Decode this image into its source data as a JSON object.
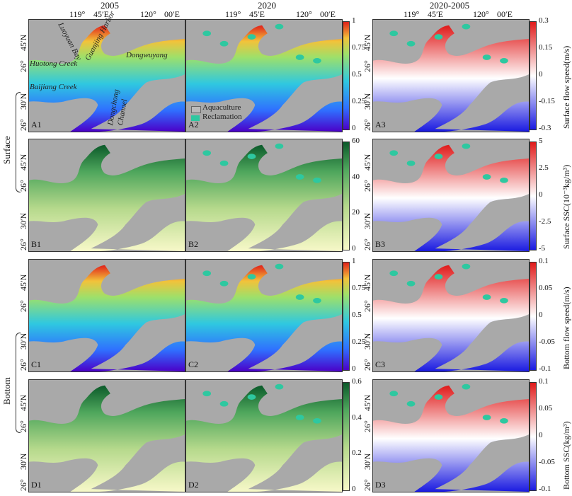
{
  "columns": {
    "c1": "2005",
    "c2": "2020",
    "c3": "2020-2005"
  },
  "lon_ticks": {
    "t1": "119°",
    "t2": "45′E",
    "t3": "120°",
    "t4": "00′E"
  },
  "lat_ticks": {
    "l1": "26°",
    "l2": "45′N",
    "l3": "26°",
    "l4": "30′N"
  },
  "panels": {
    "A1": "A1",
    "A2": "A2",
    "A3": "A3",
    "B1": "B1",
    "B2": "B2",
    "B3": "B3",
    "C1": "C1",
    "C2": "C2",
    "C3": "C3",
    "D1": "D1",
    "D2": "D2",
    "D3": "D3"
  },
  "place_names": {
    "luoyuan": "Luoyuan Bay",
    "dongwuyang": "Dongwuyang",
    "huotong": "Huotong Creek",
    "baijiang": "Baijiang Creek",
    "guanjing": "Guanjing Harbor",
    "dongchong": "Dongchong",
    "channel": "Channel"
  },
  "legend": {
    "aquaculture": "Aquaculture",
    "reclamation": "Reclamation"
  },
  "row_labels": {
    "surface": "Surface",
    "bottom": "Bottom"
  },
  "colorbars": {
    "A12": {
      "ticks": [
        "1",
        "0.75",
        "0.5",
        "0.25",
        "0"
      ]
    },
    "A3": {
      "title": "Surface flow speed(m/s)",
      "ticks": [
        "0.3",
        "0.15",
        "0",
        "-0.15",
        "-0.3"
      ]
    },
    "B12": {
      "ticks": [
        "60",
        "40",
        "20",
        "0"
      ]
    },
    "B3": {
      "title": "Surface SSC(10⁻³kg/m³)",
      "ticks": [
        "5",
        "2.5",
        "0",
        "-2.5",
        "-5"
      ]
    },
    "C12": {
      "ticks": [
        "1",
        "0.75",
        "0.5",
        "0.25",
        "0"
      ]
    },
    "C3": {
      "title": "Bottom flow speed(m/s)",
      "ticks": [
        "0.1",
        "0.05",
        "0",
        "-0.05",
        "-0.1"
      ]
    },
    "D12": {
      "ticks": [
        "0.6",
        "0.4",
        "0.2",
        "0"
      ]
    },
    "D3": {
      "title": "Bottom SSC(kg/m³)",
      "ticks": [
        "0.1",
        "0.05",
        "0",
        "-0.05",
        "-0.1"
      ]
    }
  },
  "colors": {
    "land": "#a9a9a9",
    "reclamation": "#2ec8a0",
    "aquaculture_outline": "#666666"
  }
}
